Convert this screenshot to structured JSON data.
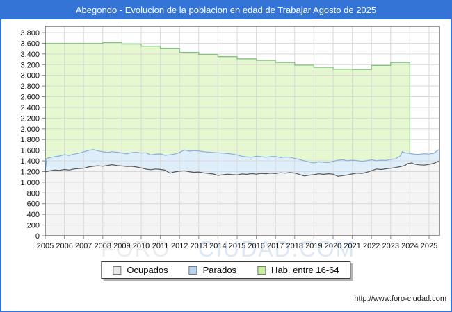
{
  "window": {
    "accent_color": "#3474d6"
  },
  "chart_data": {
    "type": "area",
    "title": "Abegondo - Evolucion de la poblacion en edad de Trabajar Agosto de 2025",
    "legend_position": "bottom",
    "grid": true,
    "ylim": [
      0,
      3920
    ],
    "x_ticks": [
      "2005",
      "2006",
      "2007",
      "2008",
      "2009",
      "2010",
      "2011",
      "2012",
      "2013",
      "2014",
      "2015",
      "2016",
      "2017",
      "2018",
      "2019",
      "2020",
      "2021",
      "2022",
      "2023",
      "2024",
      "2025"
    ],
    "y_ticks": [
      {
        "value": 0,
        "label": "0"
      },
      {
        "value": 200,
        "label": "200"
      },
      {
        "value": 400,
        "label": "400"
      },
      {
        "value": 600,
        "label": "600"
      },
      {
        "value": 800,
        "label": "800"
      },
      {
        "value": 1000,
        "label": "1.000"
      },
      {
        "value": 1200,
        "label": "1.200"
      },
      {
        "value": 1400,
        "label": "1.400"
      },
      {
        "value": 1600,
        "label": "1.600"
      },
      {
        "value": 1800,
        "label": "1.800"
      },
      {
        "value": 2000,
        "label": "2.000"
      },
      {
        "value": 2200,
        "label": "2.200"
      },
      {
        "value": 2400,
        "label": "2.400"
      },
      {
        "value": 2600,
        "label": "2.600"
      },
      {
        "value": 2800,
        "label": "2.800"
      },
      {
        "value": 3000,
        "label": "3.000"
      },
      {
        "value": 3200,
        "label": "3.200"
      },
      {
        "value": 3400,
        "label": "3.400"
      },
      {
        "value": 3600,
        "label": "3.600"
      },
      {
        "value": 3800,
        "label": "3.800"
      }
    ],
    "colors": {
      "ocupados_fill": "#f4f4f4",
      "ocupados_line": "#565656",
      "parados_fill": "#dfeefb",
      "parados_line": "#88aede",
      "hab_fill": "#e6f8cf",
      "hab_line": "#82c482",
      "gridline": "#d8d8d8",
      "plot_border": "#333333",
      "tick": "#888888",
      "axis_text": "#111111"
    },
    "series": [
      {
        "name": "Ocupados",
        "kind": "line",
        "points": [
          [
            2005.0,
            1195
          ],
          [
            2005.25,
            1215
          ],
          [
            2005.5,
            1230
          ],
          [
            2005.75,
            1222
          ],
          [
            2006.0,
            1238
          ],
          [
            2006.25,
            1228
          ],
          [
            2006.5,
            1248
          ],
          [
            2006.75,
            1255
          ],
          [
            2007.0,
            1262
          ],
          [
            2007.25,
            1285
          ],
          [
            2007.5,
            1298
          ],
          [
            2007.75,
            1308
          ],
          [
            2008.0,
            1300
          ],
          [
            2008.25,
            1315
          ],
          [
            2008.5,
            1328
          ],
          [
            2008.75,
            1312
          ],
          [
            2009.0,
            1305
          ],
          [
            2009.25,
            1295
          ],
          [
            2009.5,
            1298
          ],
          [
            2009.75,
            1285
          ],
          [
            2010.0,
            1268
          ],
          [
            2010.25,
            1245
          ],
          [
            2010.5,
            1235
          ],
          [
            2010.75,
            1248
          ],
          [
            2011.0,
            1240
          ],
          [
            2011.25,
            1225
          ],
          [
            2011.5,
            1168
          ],
          [
            2011.75,
            1195
          ],
          [
            2012.0,
            1208
          ],
          [
            2012.25,
            1215
          ],
          [
            2012.5,
            1198
          ],
          [
            2012.75,
            1185
          ],
          [
            2013.0,
            1192
          ],
          [
            2013.25,
            1175
          ],
          [
            2013.5,
            1165
          ],
          [
            2013.75,
            1155
          ],
          [
            2014.0,
            1128
          ],
          [
            2014.25,
            1140
          ],
          [
            2014.5,
            1152
          ],
          [
            2014.75,
            1142
          ],
          [
            2015.0,
            1138
          ],
          [
            2015.25,
            1155
          ],
          [
            2015.5,
            1148
          ],
          [
            2015.75,
            1162
          ],
          [
            2016.0,
            1152
          ],
          [
            2016.25,
            1165
          ],
          [
            2016.5,
            1158
          ],
          [
            2016.75,
            1170
          ],
          [
            2017.0,
            1162
          ],
          [
            2017.25,
            1178
          ],
          [
            2017.5,
            1170
          ],
          [
            2017.75,
            1182
          ],
          [
            2018.0,
            1172
          ],
          [
            2018.25,
            1145
          ],
          [
            2018.5,
            1118
          ],
          [
            2018.75,
            1132
          ],
          [
            2019.0,
            1142
          ],
          [
            2019.25,
            1158
          ],
          [
            2019.5,
            1148
          ],
          [
            2019.75,
            1160
          ],
          [
            2020.0,
            1152
          ],
          [
            2020.25,
            1112
          ],
          [
            2020.5,
            1125
          ],
          [
            2020.75,
            1138
          ],
          [
            2021.0,
            1155
          ],
          [
            2021.25,
            1172
          ],
          [
            2021.5,
            1165
          ],
          [
            2021.75,
            1185
          ],
          [
            2022.0,
            1215
          ],
          [
            2022.25,
            1248
          ],
          [
            2022.5,
            1238
          ],
          [
            2022.75,
            1252
          ],
          [
            2023.0,
            1262
          ],
          [
            2023.25,
            1275
          ],
          [
            2023.5,
            1292
          ],
          [
            2023.75,
            1315
          ],
          [
            2023.9,
            1352
          ],
          [
            2024.1,
            1360
          ],
          [
            2024.25,
            1338
          ],
          [
            2024.5,
            1325
          ],
          [
            2024.75,
            1320
          ],
          [
            2025.0,
            1335
          ],
          [
            2025.25,
            1355
          ],
          [
            2025.54,
            1400
          ]
        ]
      },
      {
        "name": "Parados",
        "kind": "line",
        "note": "line is Ocupados+Parados stacked total",
        "points": [
          [
            2005.0,
            1210
          ],
          [
            2005.08,
            1448
          ],
          [
            2005.25,
            1462
          ],
          [
            2005.5,
            1478
          ],
          [
            2005.75,
            1492
          ],
          [
            2006.0,
            1518
          ],
          [
            2006.25,
            1502
          ],
          [
            2006.5,
            1528
          ],
          [
            2006.75,
            1542
          ],
          [
            2007.0,
            1568
          ],
          [
            2007.25,
            1595
          ],
          [
            2007.5,
            1612
          ],
          [
            2007.75,
            1588
          ],
          [
            2008.0,
            1572
          ],
          [
            2008.25,
            1558
          ],
          [
            2008.5,
            1572
          ],
          [
            2008.75,
            1562
          ],
          [
            2009.0,
            1548
          ],
          [
            2009.25,
            1532
          ],
          [
            2009.5,
            1555
          ],
          [
            2009.75,
            1562
          ],
          [
            2010.0,
            1548
          ],
          [
            2010.25,
            1552
          ],
          [
            2010.5,
            1512
          ],
          [
            2010.75,
            1525
          ],
          [
            2011.0,
            1532
          ],
          [
            2011.25,
            1505
          ],
          [
            2011.5,
            1515
          ],
          [
            2011.75,
            1528
          ],
          [
            2012.0,
            1558
          ],
          [
            2012.25,
            1605
          ],
          [
            2012.5,
            1582
          ],
          [
            2012.75,
            1592
          ],
          [
            2013.0,
            1588
          ],
          [
            2013.25,
            1572
          ],
          [
            2013.5,
            1565
          ],
          [
            2013.75,
            1558
          ],
          [
            2014.0,
            1552
          ],
          [
            2014.25,
            1545
          ],
          [
            2014.5,
            1538
          ],
          [
            2014.75,
            1528
          ],
          [
            2015.0,
            1512
          ],
          [
            2015.25,
            1488
          ],
          [
            2015.5,
            1475
          ],
          [
            2015.75,
            1468
          ],
          [
            2016.0,
            1488
          ],
          [
            2016.25,
            1478
          ],
          [
            2016.5,
            1468
          ],
          [
            2016.75,
            1478
          ],
          [
            2017.0,
            1482
          ],
          [
            2017.25,
            1462
          ],
          [
            2017.5,
            1472
          ],
          [
            2017.75,
            1468
          ],
          [
            2018.0,
            1445
          ],
          [
            2018.25,
            1428
          ],
          [
            2018.5,
            1402
          ],
          [
            2018.75,
            1378
          ],
          [
            2019.0,
            1362
          ],
          [
            2019.25,
            1382
          ],
          [
            2019.5,
            1372
          ],
          [
            2019.75,
            1368
          ],
          [
            2020.0,
            1392
          ],
          [
            2020.25,
            1412
          ],
          [
            2020.5,
            1422
          ],
          [
            2020.75,
            1402
          ],
          [
            2021.0,
            1412
          ],
          [
            2021.25,
            1405
          ],
          [
            2021.5,
            1392
          ],
          [
            2021.75,
            1402
          ],
          [
            2022.0,
            1422
          ],
          [
            2022.25,
            1402
          ],
          [
            2022.5,
            1412
          ],
          [
            2022.75,
            1408
          ],
          [
            2023.0,
            1428
          ],
          [
            2023.25,
            1438
          ],
          [
            2023.5,
            1492
          ],
          [
            2023.6,
            1572
          ],
          [
            2023.75,
            1552
          ],
          [
            2024.0,
            1538
          ],
          [
            2024.25,
            1525
          ],
          [
            2024.5,
            1522
          ],
          [
            2024.75,
            1535
          ],
          [
            2025.0,
            1528
          ],
          [
            2025.25,
            1545
          ],
          [
            2025.54,
            1618
          ]
        ]
      },
      {
        "name": "Hab. entre 16-64",
        "kind": "step",
        "steps": [
          [
            2005,
            3595
          ],
          [
            2008,
            3615
          ],
          [
            2009,
            3585
          ],
          [
            2010,
            3545
          ],
          [
            2011,
            3505
          ],
          [
            2012,
            3430
          ],
          [
            2013,
            3390
          ],
          [
            2014,
            3350
          ],
          [
            2015,
            3310
          ],
          [
            2016,
            3280
          ],
          [
            2017,
            3240
          ],
          [
            2018,
            3190
          ],
          [
            2019,
            3150
          ],
          [
            2020,
            3115
          ],
          [
            2021,
            3110
          ],
          [
            2022,
            3185
          ],
          [
            2023,
            3240
          ]
        ],
        "end_x": 2024.0,
        "end_value": 1540
      }
    ]
  },
  "legend": {
    "items": [
      {
        "label": "Ocupados",
        "swatch": "#e9e9e9"
      },
      {
        "label": "Parados",
        "swatch": "#b6d3f2"
      },
      {
        "label": "Hab. entre 16-64",
        "swatch": "#c7f09c"
      }
    ]
  },
  "watermark": {
    "part1": "FORO",
    "part2": "CIUDAD.COM",
    "color1": "#ececec",
    "color2": "#dce8f6"
  },
  "footer": {
    "url": "http://www.foro-ciudad.com"
  }
}
